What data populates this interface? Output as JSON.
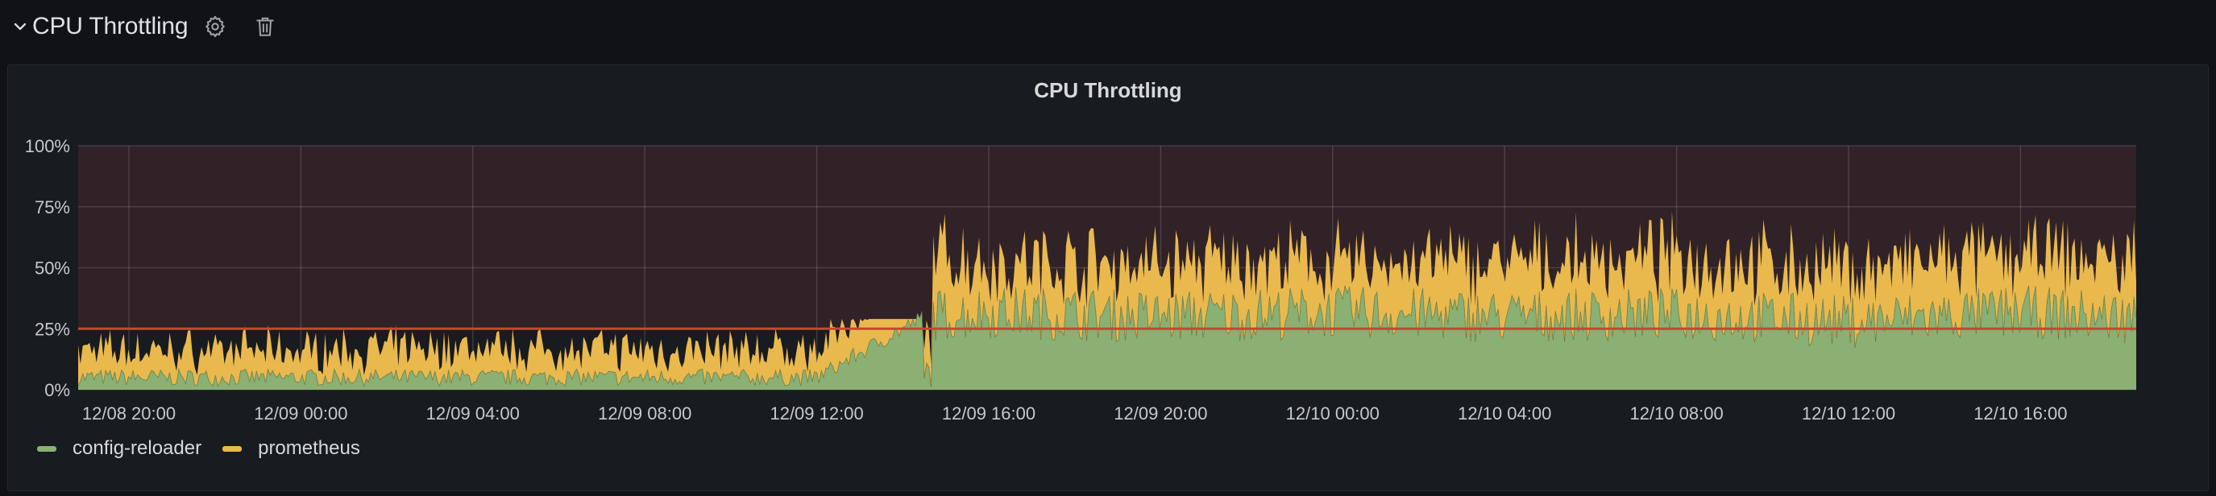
{
  "row": {
    "title": "CPU Throttling",
    "collapse_icon": "chevron-down-icon",
    "settings_icon": "gear-icon",
    "delete_icon": "trash-icon"
  },
  "panel": {
    "title": "CPU Throttling"
  },
  "colors": {
    "background": "#111217",
    "panel": "#181b1f",
    "threshold_region": "#302226",
    "threshold_line": "#c4482e",
    "config_reloader": "#8ab073",
    "prometheus": "#e9b94e"
  },
  "legend": [
    {
      "label": "config-reloader",
      "color": "#8ab073"
    },
    {
      "label": "prometheus",
      "color": "#e9b94e"
    }
  ],
  "chart_data": {
    "type": "area",
    "stacked": true,
    "title": "CPU Throttling",
    "y_ticks": [
      "0%",
      "25%",
      "50%",
      "75%",
      "100%"
    ],
    "ylim": [
      0,
      100
    ],
    "x_ticks": [
      "12/08 20:00",
      "12/09 00:00",
      "12/09 04:00",
      "12/09 08:00",
      "12/09 12:00",
      "12/09 16:00",
      "12/09 20:00",
      "12/10 00:00",
      "12/10 04:00",
      "12/10 08:00",
      "12/10 12:00",
      "12/10 16:00"
    ],
    "threshold": 25,
    "grid": true,
    "legend_position": "bottom-left",
    "series": [
      {
        "name": "config-reloader",
        "x": [
          "12/08 20:00",
          "12/09 00:00",
          "12/09 04:00",
          "12/09 08:00",
          "12/09 12:00",
          "12/09 14:30",
          "12/09 16:00",
          "12/09 20:00",
          "12/10 00:00",
          "12/10 04:00",
          "12/10 08:00",
          "12/10 12:00",
          "12/10 16:00",
          "12/10 18:00"
        ],
        "values": [
          5,
          5,
          5,
          5,
          5,
          30,
          32,
          30,
          32,
          30,
          31,
          28,
          32,
          30
        ]
      },
      {
        "name": "prometheus",
        "x": [
          "12/08 20:00",
          "12/09 00:00",
          "12/09 04:00",
          "12/09 08:00",
          "12/09 12:00",
          "12/09 14:30",
          "12/09 16:00",
          "12/09 20:00",
          "12/10 00:00",
          "12/10 04:00",
          "12/10 08:00",
          "12/10 12:00",
          "12/10 16:00",
          "12/10 18:00"
        ],
        "values": [
          8,
          8,
          9,
          8,
          8,
          22,
          15,
          17,
          15,
          17,
          18,
          16,
          18,
          18
        ]
      }
    ]
  }
}
